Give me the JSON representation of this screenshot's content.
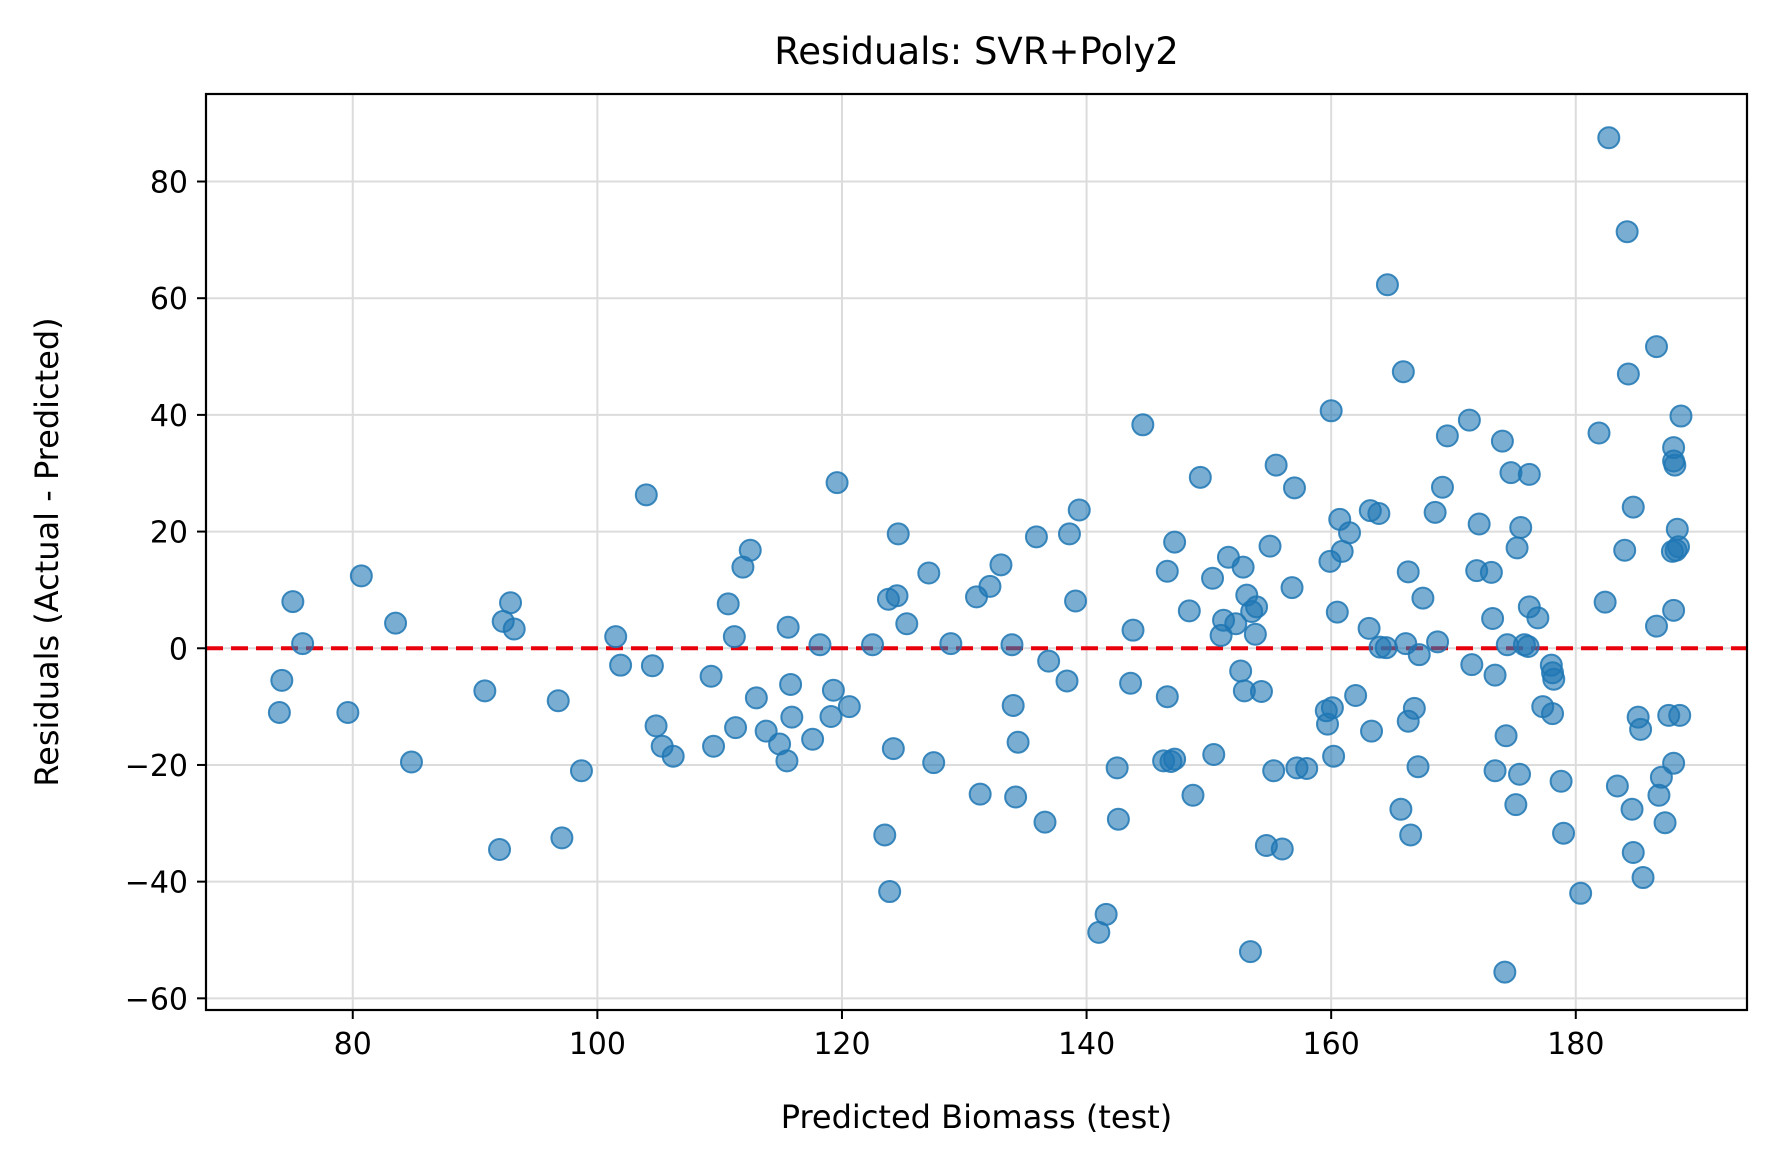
{
  "chart_data": {
    "type": "scatter",
    "title": "Residuals: SVR+Poly2",
    "xlabel": "Predicted Biomass (test)",
    "ylabel": "Residuals (Actual - Predicted)",
    "xlim": [
      68,
      194
    ],
    "ylim": [
      -62,
      95
    ],
    "xticks": [
      80,
      100,
      120,
      140,
      160,
      180
    ],
    "yticks": [
      -60,
      -40,
      -20,
      0,
      20,
      40,
      60,
      80
    ],
    "xtick_labels": [
      "80",
      "100",
      "120",
      "140",
      "160",
      "180"
    ],
    "ytick_labels": [
      "−60",
      "−40",
      "−20",
      "0",
      "20",
      "40",
      "60",
      "80"
    ],
    "grid": true,
    "reference_line": {
      "y": 0,
      "style": "dashed",
      "color": "#e8000b"
    },
    "marker_color": "#1f77b4",
    "marker_alpha": 0.6,
    "series": [
      {
        "points": [
          [
            74,
            -11
          ],
          [
            74.2,
            -5.5
          ],
          [
            75.1,
            8
          ],
          [
            75.9,
            0.8
          ],
          [
            79.6,
            -11
          ],
          [
            80.7,
            12.4
          ],
          [
            83.5,
            4.3
          ],
          [
            84.8,
            -19.5
          ],
          [
            90.8,
            -7.3
          ],
          [
            92,
            -34.5
          ],
          [
            92.3,
            4.6
          ],
          [
            92.9,
            7.8
          ],
          [
            93.2,
            3.3
          ],
          [
            96.8,
            -9
          ],
          [
            97.1,
            -32.5
          ],
          [
            98.7,
            -21
          ],
          [
            101.5,
            2
          ],
          [
            101.9,
            -2.9
          ],
          [
            104,
            26.3
          ],
          [
            104.5,
            -3
          ],
          [
            104.8,
            -13.3
          ],
          [
            105.3,
            -16.8
          ],
          [
            106.2,
            -18.5
          ],
          [
            109.3,
            -4.8
          ],
          [
            109.5,
            -16.8
          ],
          [
            110.7,
            7.6
          ],
          [
            111.2,
            2
          ],
          [
            111.3,
            -13.6
          ],
          [
            111.9,
            13.9
          ],
          [
            112.5,
            16.8
          ],
          [
            113,
            -8.5
          ],
          [
            113.8,
            -14.2
          ],
          [
            114.9,
            -16.4
          ],
          [
            115.5,
            -19.3
          ],
          [
            115.6,
            3.6
          ],
          [
            115.8,
            -6.2
          ],
          [
            115.9,
            -11.8
          ],
          [
            117.6,
            -15.6
          ],
          [
            118.2,
            0.6
          ],
          [
            119.1,
            -11.7
          ],
          [
            119.3,
            -7.2
          ],
          [
            119.6,
            28.4
          ],
          [
            120.6,
            -10
          ],
          [
            122.5,
            0.6
          ],
          [
            123.5,
            -32
          ],
          [
            123.8,
            8.4
          ],
          [
            123.9,
            -41.7
          ],
          [
            124.2,
            -17.2
          ],
          [
            124.5,
            9
          ],
          [
            124.6,
            19.6
          ],
          [
            125.3,
            4.2
          ],
          [
            127.1,
            12.9
          ],
          [
            127.5,
            -19.6
          ],
          [
            128.9,
            0.8
          ],
          [
            131,
            8.8
          ],
          [
            131.3,
            -25
          ],
          [
            132.1,
            10.6
          ],
          [
            133,
            14.3
          ],
          [
            133.9,
            0.6
          ],
          [
            134,
            -9.8
          ],
          [
            134.2,
            -25.5
          ],
          [
            134.4,
            -16.1
          ],
          [
            135.9,
            19.1
          ],
          [
            136.6,
            -29.8
          ],
          [
            136.9,
            -2.2
          ],
          [
            138.4,
            -5.6
          ],
          [
            138.6,
            19.6
          ],
          [
            139.1,
            8.1
          ],
          [
            139.4,
            23.7
          ],
          [
            141,
            -48.7
          ],
          [
            141.6,
            -45.6
          ],
          [
            142.5,
            -20.5
          ],
          [
            142.6,
            -29.3
          ],
          [
            143.6,
            -6
          ],
          [
            143.8,
            3.1
          ],
          [
            144.6,
            38.3
          ],
          [
            146.3,
            -19.3
          ],
          [
            146.6,
            -8.3
          ],
          [
            146.6,
            13.2
          ],
          [
            146.9,
            -19.4
          ],
          [
            147.2,
            -19
          ],
          [
            147.2,
            18.2
          ],
          [
            148.4,
            6.4
          ],
          [
            148.7,
            -25.2
          ],
          [
            149.3,
            29.3
          ],
          [
            150.3,
            12
          ],
          [
            150.4,
            -18.2
          ],
          [
            151,
            2.2
          ],
          [
            151.2,
            4.8
          ],
          [
            151.6,
            15.6
          ],
          [
            152.2,
            4.2
          ],
          [
            152.6,
            -3.9
          ],
          [
            152.8,
            13.9
          ],
          [
            152.9,
            -7.3
          ],
          [
            153.1,
            9.1
          ],
          [
            153.4,
            -52
          ],
          [
            153.5,
            6.3
          ],
          [
            153.8,
            2.4
          ],
          [
            153.9,
            7.1
          ],
          [
            154.3,
            -7.4
          ],
          [
            154.7,
            -33.8
          ],
          [
            155,
            17.5
          ],
          [
            155.3,
            -21
          ],
          [
            155.5,
            31.4
          ],
          [
            156,
            -34.4
          ],
          [
            156.8,
            10.4
          ],
          [
            157,
            27.5
          ],
          [
            157.2,
            -20.5
          ],
          [
            158,
            -20.6
          ],
          [
            159.6,
            -10.7
          ],
          [
            159.7,
            -13
          ],
          [
            159.9,
            14.9
          ],
          [
            160,
            40.7
          ],
          [
            160.1,
            -10.2
          ],
          [
            160.2,
            -18.5
          ],
          [
            160.5,
            6.2
          ],
          [
            160.7,
            22.1
          ],
          [
            160.9,
            16.6
          ],
          [
            161.5,
            19.8
          ],
          [
            162,
            -8.1
          ],
          [
            163.1,
            3.4
          ],
          [
            163.2,
            23.6
          ],
          [
            163.3,
            -14.2
          ],
          [
            163.9,
            23.1
          ],
          [
            164,
            0.2
          ],
          [
            164.5,
            0.1
          ],
          [
            164.6,
            62.3
          ],
          [
            165.7,
            -27.6
          ],
          [
            165.9,
            47.4
          ],
          [
            166.1,
            0.8
          ],
          [
            166.3,
            13.1
          ],
          [
            166.3,
            -12.5
          ],
          [
            166.5,
            -32
          ],
          [
            166.8,
            -10.3
          ],
          [
            167.1,
            -20.3
          ],
          [
            167.2,
            -1.1
          ],
          [
            167.5,
            8.6
          ],
          [
            168.5,
            23.3
          ],
          [
            168.7,
            1.1
          ],
          [
            169.1,
            27.6
          ],
          [
            169.5,
            36.4
          ],
          [
            171.3,
            39.1
          ],
          [
            171.5,
            -2.8
          ],
          [
            171.9,
            13.3
          ],
          [
            172.1,
            21.3
          ],
          [
            173.1,
            13
          ],
          [
            173.2,
            5.1
          ],
          [
            173.4,
            -4.6
          ],
          [
            173.4,
            -21
          ],
          [
            174,
            35.5
          ],
          [
            174.2,
            -55.5
          ],
          [
            174.3,
            -15
          ],
          [
            174.4,
            0.6
          ],
          [
            174.7,
            30.1
          ],
          [
            175.1,
            -26.8
          ],
          [
            175.2,
            17.2
          ],
          [
            175.4,
            -21.6
          ],
          [
            175.5,
            20.7
          ],
          [
            175.8,
            0.6
          ],
          [
            176.1,
            0.3
          ],
          [
            176.2,
            29.8
          ],
          [
            176.2,
            7.1
          ],
          [
            176.9,
            5.2
          ],
          [
            177.3,
            -10
          ],
          [
            178,
            -2.9
          ],
          [
            178.1,
            -11.2
          ],
          [
            178.1,
            -4.2
          ],
          [
            178.2,
            -5.3
          ],
          [
            178.8,
            -22.8
          ],
          [
            179,
            -31.7
          ],
          [
            180.4,
            -42
          ],
          [
            181.9,
            36.9
          ],
          [
            182.4,
            7.9
          ],
          [
            182.7,
            87.5
          ],
          [
            183.4,
            -23.6
          ],
          [
            184,
            16.8
          ],
          [
            184.2,
            71.4
          ],
          [
            184.3,
            47
          ],
          [
            184.6,
            -27.6
          ],
          [
            184.7,
            24.2
          ],
          [
            184.7,
            -35
          ],
          [
            185.1,
            -11.8
          ],
          [
            185.3,
            -13.9
          ],
          [
            185.5,
            -39.3
          ],
          [
            186.6,
            3.8
          ],
          [
            186.6,
            51.7
          ],
          [
            186.8,
            -25.2
          ],
          [
            187,
            -22.1
          ],
          [
            187.3,
            -29.9
          ],
          [
            187.6,
            -11.5
          ],
          [
            187.9,
            16.6
          ],
          [
            188,
            32.1
          ],
          [
            188,
            6.5
          ],
          [
            188,
            34.4
          ],
          [
            188,
            -19.7
          ],
          [
            188.1,
            31.4
          ],
          [
            188.2,
            16.8
          ],
          [
            188.3,
            20.4
          ],
          [
            188.4,
            17.4
          ],
          [
            188.5,
            -11.5
          ],
          [
            188.6,
            39.8
          ]
        ]
      }
    ]
  }
}
